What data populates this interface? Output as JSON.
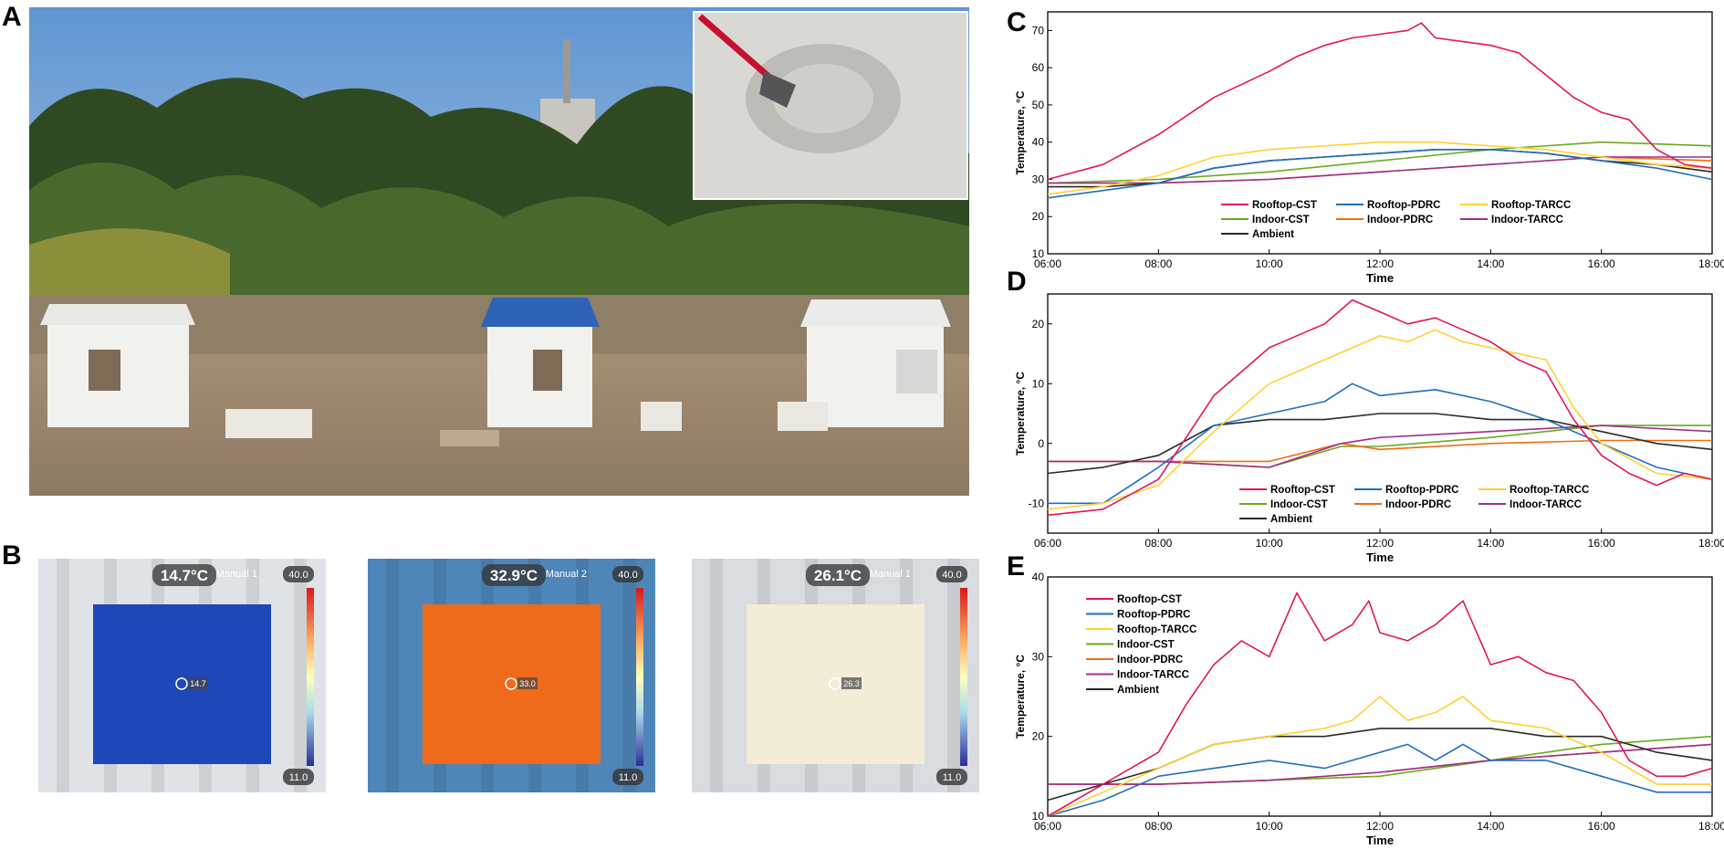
{
  "panels": {
    "a": "A",
    "b": "B",
    "c": "C",
    "d": "D",
    "e": "E"
  },
  "thermal_images": [
    {
      "temp_label": "14.7°C",
      "manual_label": "Manual 1",
      "scale_max": "40.0",
      "scale_min": "11.0",
      "spot_value": "14.7",
      "roof_color": "#dfe3e7",
      "overlay_color": "#1f47b8"
    },
    {
      "temp_label": "32.9°C",
      "manual_label": "Manual 2",
      "scale_max": "40.0",
      "scale_min": "11.0",
      "spot_value": "33.0",
      "roof_color": "#4f86b9",
      "overlay_color": "#ef6a1a"
    },
    {
      "temp_label": "26.1°C",
      "manual_label": "Manual 1",
      "scale_max": "40.0",
      "scale_min": "11.0",
      "spot_value": "26.3",
      "roof_color": "#d8dce0",
      "overlay_color": "#f3ecd7"
    }
  ],
  "colors": {
    "Rooftop-CST": "#e4145a",
    "Rooftop-PDRC": "#1f6fc0",
    "Rooftop-TARCC": "#ffd130",
    "Indoor-CST": "#6aaa1e",
    "Indoor-PDRC": "#f26c12",
    "Indoor-TARCC": "#9c2f8f",
    "Ambient": "#2a2a2a"
  },
  "chart_data": [
    {
      "panel": "C",
      "type": "line",
      "xlabel": "Time",
      "ylabel": "Temperature, °C",
      "xticks": [
        "06:00",
        "08:00",
        "10:00",
        "12:00",
        "14:00",
        "16:00",
        "18:00"
      ],
      "xlim": [
        6,
        18
      ],
      "ylim": [
        10,
        75
      ],
      "yticks": [
        10,
        20,
        30,
        40,
        50,
        60,
        70
      ],
      "series": [
        {
          "name": "Rooftop-CST",
          "x": [
            6,
            7,
            8,
            9,
            10,
            10.5,
            11,
            11.5,
            12,
            12.5,
            12.75,
            13,
            13.5,
            14,
            14.5,
            15,
            15.5,
            16,
            16.5,
            17,
            17.5,
            18
          ],
          "y": [
            30,
            34,
            42,
            52,
            59,
            63,
            66,
            68,
            69,
            70,
            72,
            68,
            67,
            66,
            64,
            58,
            52,
            48,
            46,
            38,
            34,
            33
          ]
        },
        {
          "name": "Rooftop-PDRC",
          "x": [
            6,
            7,
            8,
            9,
            10,
            11,
            12,
            13,
            14,
            15,
            16,
            17,
            18
          ],
          "y": [
            25,
            27,
            29,
            33,
            35,
            36,
            37,
            38,
            38,
            37,
            35,
            33,
            30
          ]
        },
        {
          "name": "Rooftop-TARCC",
          "x": [
            6,
            7,
            8,
            9,
            10,
            11,
            12,
            13,
            14,
            15,
            16,
            17,
            18
          ],
          "y": [
            26,
            28,
            31,
            36,
            38,
            39,
            40,
            40,
            39,
            38,
            36,
            34,
            33
          ]
        },
        {
          "name": "Indoor-CST",
          "x": [
            6,
            8,
            10,
            12,
            14,
            16,
            18
          ],
          "y": [
            29,
            30,
            32,
            35,
            38,
            40,
            39
          ]
        },
        {
          "name": "Indoor-PDRC",
          "x": [
            6,
            8,
            10,
            12,
            14,
            16,
            18
          ],
          "y": [
            29,
            29,
            30,
            32,
            34,
            36,
            35
          ]
        },
        {
          "name": "Indoor-TARCC",
          "x": [
            6,
            8,
            10,
            12,
            14,
            16,
            18
          ],
          "y": [
            29,
            29,
            30,
            32,
            34,
            36,
            36
          ]
        },
        {
          "name": "Ambient",
          "x": [
            6,
            7,
            8,
            9,
            10,
            11,
            12,
            13,
            14,
            15,
            16,
            17,
            18
          ],
          "y": [
            28,
            28,
            29,
            33,
            35,
            36,
            37,
            38,
            38,
            37,
            35,
            34,
            32
          ]
        }
      ]
    },
    {
      "panel": "D",
      "type": "line",
      "xlabel": "Time",
      "ylabel": "Temperature, °C",
      "xticks": [
        "06:00",
        "08:00",
        "10:00",
        "12:00",
        "14:00",
        "16:00",
        "18:00"
      ],
      "xlim": [
        6,
        18
      ],
      "ylim": [
        -15,
        25
      ],
      "yticks": [
        -10,
        0,
        10,
        20
      ],
      "series": [
        {
          "name": "Rooftop-CST",
          "x": [
            6,
            7,
            8,
            9,
            10,
            11,
            11.5,
            12,
            12.5,
            13,
            13.5,
            14,
            14.5,
            15,
            15.5,
            16,
            16.5,
            17,
            17.5,
            18
          ],
          "y": [
            -12,
            -11,
            -6,
            8,
            16,
            20,
            24,
            22,
            20,
            21,
            19,
            17,
            14,
            12,
            4,
            -2,
            -5,
            -7,
            -5,
            -6
          ]
        },
        {
          "name": "Rooftop-PDRC",
          "x": [
            6,
            7,
            8,
            9,
            10,
            11,
            11.5,
            12,
            13,
            14,
            15,
            16,
            17,
            18
          ],
          "y": [
            -10,
            -10,
            -4,
            3,
            5,
            7,
            10,
            8,
            9,
            7,
            4,
            0,
            -4,
            -6
          ]
        },
        {
          "name": "Rooftop-TARCC",
          "x": [
            6,
            7,
            8,
            9,
            10,
            11,
            12,
            12.5,
            13,
            13.5,
            14,
            15,
            15.5,
            16,
            17,
            18
          ],
          "y": [
            -11,
            -10,
            -7,
            2,
            10,
            14,
            18,
            17,
            19,
            17,
            16,
            14,
            6,
            0,
            -5,
            -6
          ]
        },
        {
          "name": "Indoor-CST",
          "x": [
            6,
            8,
            10,
            11.3,
            12,
            14,
            16,
            18
          ],
          "y": [
            -3,
            -3,
            -4,
            -0.5,
            -0.5,
            1,
            3,
            3
          ]
        },
        {
          "name": "Indoor-PDRC",
          "x": [
            6,
            8,
            10,
            11.3,
            12,
            14,
            16,
            18
          ],
          "y": [
            -3,
            -3,
            -3,
            0,
            -1,
            0,
            0.5,
            0.5
          ]
        },
        {
          "name": "Indoor-TARCC",
          "x": [
            6,
            8,
            10,
            11.3,
            12,
            14,
            16,
            18
          ],
          "y": [
            -3,
            -3,
            -4,
            0,
            1,
            2,
            3,
            2
          ]
        },
        {
          "name": "Ambient",
          "x": [
            6,
            7,
            8,
            9,
            10,
            11,
            12,
            13,
            14,
            15,
            16,
            17,
            18
          ],
          "y": [
            -5,
            -4,
            -2,
            3,
            4,
            4,
            5,
            5,
            4,
            4,
            2,
            0,
            -1
          ]
        }
      ]
    },
    {
      "panel": "E",
      "type": "line",
      "xlabel": "Time",
      "ylabel": "Temperature, °C",
      "xticks": [
        "06:00",
        "08:00",
        "10:00",
        "12:00",
        "14:00",
        "16:00",
        "18:00"
      ],
      "xlim": [
        6,
        18
      ],
      "ylim": [
        10,
        40
      ],
      "yticks": [
        10,
        20,
        30,
        40
      ],
      "series": [
        {
          "name": "Rooftop-CST",
          "x": [
            6,
            7,
            7.5,
            8,
            8.5,
            9,
            9.5,
            10,
            10.5,
            11,
            11.5,
            11.8,
            12,
            12.5,
            13,
            13.5,
            14,
            14.5,
            15,
            15.5,
            16,
            16.5,
            17,
            17.5,
            18
          ],
          "y": [
            10,
            14,
            16,
            18,
            24,
            29,
            32,
            30,
            38,
            32,
            34,
            37,
            33,
            32,
            34,
            37,
            29,
            30,
            28,
            27,
            23,
            17,
            15,
            15,
            16
          ]
        },
        {
          "name": "Rooftop-PDRC",
          "x": [
            6,
            7,
            8,
            9,
            10,
            11,
            12,
            12.5,
            13,
            13.5,
            14,
            15,
            16,
            17,
            18
          ],
          "y": [
            10,
            12,
            15,
            16,
            17,
            16,
            18,
            19,
            17,
            19,
            17,
            17,
            15,
            13,
            13
          ]
        },
        {
          "name": "Rooftop-TARCC",
          "x": [
            6,
            7,
            8,
            9,
            10,
            11,
            11.5,
            12,
            12.5,
            13,
            13.5,
            14,
            15,
            16,
            17,
            18
          ],
          "y": [
            10,
            13,
            16,
            19,
            20,
            21,
            22,
            25,
            22,
            23,
            25,
            22,
            21,
            18,
            14,
            14
          ]
        },
        {
          "name": "Indoor-CST",
          "x": [
            6,
            8,
            10,
            12,
            14,
            16,
            18
          ],
          "y": [
            14,
            14,
            14.5,
            15,
            17,
            19,
            20
          ]
        },
        {
          "name": "Indoor-PDRC",
          "x": [
            6,
            8,
            10,
            12,
            14,
            16,
            18
          ],
          "y": [
            14,
            14,
            14.5,
            15.5,
            17,
            18,
            19
          ]
        },
        {
          "name": "Indoor-TARCC",
          "x": [
            6,
            8,
            10,
            12,
            14,
            16,
            18
          ],
          "y": [
            14,
            14,
            14.5,
            15.5,
            17,
            18,
            19
          ]
        },
        {
          "name": "Ambient",
          "x": [
            6,
            7,
            8,
            9,
            10,
            11,
            12,
            13,
            14,
            15,
            16,
            17,
            18
          ],
          "y": [
            12,
            14,
            16,
            19,
            20,
            20,
            21,
            21,
            21,
            20,
            20,
            18,
            17
          ]
        }
      ]
    }
  ]
}
